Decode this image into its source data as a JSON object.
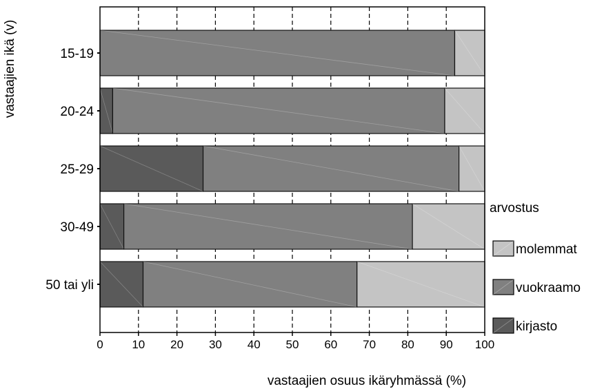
{
  "chart_data": {
    "type": "bar",
    "orientation": "horizontal",
    "stacked": true,
    "percent": true,
    "categories": [
      "15-19",
      "20-24",
      "25-29",
      "30-49",
      "50 tai yli"
    ],
    "series": [
      {
        "name": "kirjasto",
        "color": "#5a5a5a",
        "values": [
          0,
          3.3,
          26.8,
          6.2,
          11.2
        ]
      },
      {
        "name": "vuokraamo",
        "color": "#808080",
        "values": [
          92.2,
          86.3,
          66.5,
          75.0,
          55.6
        ]
      },
      {
        "name": "molemmat",
        "color": "#c4c4c4",
        "values": [
          7.8,
          10.4,
          6.7,
          18.8,
          33.2
        ]
      }
    ],
    "xlabel": "vastaajien osuus ikäryhmässä (%)",
    "ylabel": "vastaajien ikä (v)",
    "xlim": [
      0,
      100
    ],
    "xticks": [
      0,
      10,
      20,
      30,
      40,
      50,
      60,
      70,
      80,
      90,
      100
    ],
    "grid": "vertical dashed",
    "legend": {
      "title": "arvostus",
      "placement": "right",
      "order": [
        "molemmat",
        "vuokraamo",
        "kirjasto"
      ]
    }
  }
}
